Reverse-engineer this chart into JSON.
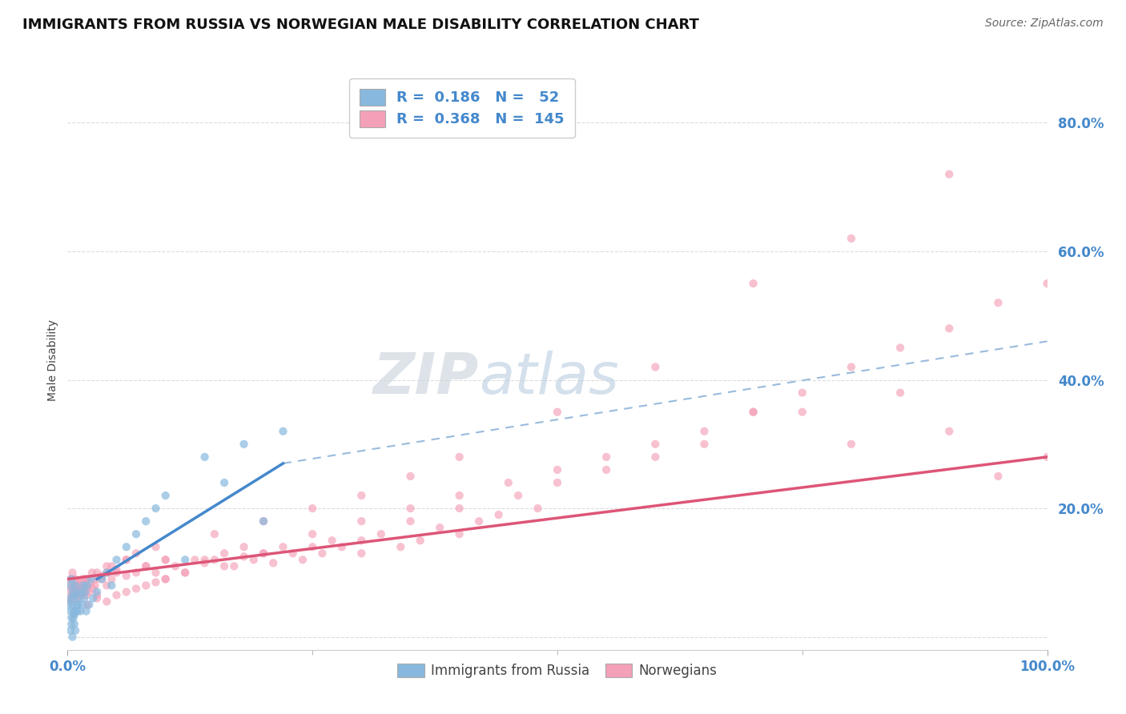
{
  "title": "IMMIGRANTS FROM RUSSIA VS NORWEGIAN MALE DISABILITY CORRELATION CHART",
  "source": "Source: ZipAtlas.com",
  "ylabel": "Male Disability",
  "watermark": "ZIPatlas",
  "legend_entries": [
    {
      "label": "Immigrants from Russia",
      "R": 0.186,
      "N": 52,
      "color": "#a8c8e8"
    },
    {
      "label": "Norwegians",
      "R": 0.368,
      "N": 145,
      "color": "#f4a0b8"
    }
  ],
  "blue_x": [
    0.001,
    0.002,
    0.003,
    0.003,
    0.004,
    0.004,
    0.005,
    0.005,
    0.006,
    0.006,
    0.007,
    0.007,
    0.008,
    0.008,
    0.009,
    0.01,
    0.01,
    0.011,
    0.012,
    0.013,
    0.014,
    0.015,
    0.016,
    0.017,
    0.018,
    0.019,
    0.02,
    0.022,
    0.024,
    0.026,
    0.03,
    0.035,
    0.04,
    0.045,
    0.05,
    0.06,
    0.07,
    0.08,
    0.09,
    0.1,
    0.12,
    0.14,
    0.16,
    0.18,
    0.2,
    0.22,
    0.003,
    0.004,
    0.005,
    0.006,
    0.007,
    0.008
  ],
  "blue_y": [
    0.05,
    0.06,
    0.04,
    0.08,
    0.03,
    0.09,
    0.05,
    0.07,
    0.04,
    0.06,
    0.035,
    0.065,
    0.04,
    0.08,
    0.05,
    0.04,
    0.07,
    0.05,
    0.06,
    0.04,
    0.07,
    0.05,
    0.08,
    0.06,
    0.07,
    0.04,
    0.08,
    0.05,
    0.09,
    0.06,
    0.07,
    0.09,
    0.1,
    0.08,
    0.12,
    0.14,
    0.16,
    0.18,
    0.2,
    0.22,
    0.12,
    0.28,
    0.24,
    0.3,
    0.18,
    0.32,
    0.01,
    0.02,
    0.0,
    0.03,
    0.02,
    0.01
  ],
  "pink_x": [
    0.001,
    0.002,
    0.003,
    0.004,
    0.005,
    0.005,
    0.006,
    0.007,
    0.008,
    0.008,
    0.009,
    0.01,
    0.01,
    0.011,
    0.012,
    0.013,
    0.014,
    0.015,
    0.016,
    0.017,
    0.018,
    0.019,
    0.02,
    0.02,
    0.022,
    0.024,
    0.026,
    0.028,
    0.03,
    0.03,
    0.035,
    0.04,
    0.04,
    0.045,
    0.05,
    0.06,
    0.06,
    0.07,
    0.08,
    0.09,
    0.1,
    0.1,
    0.11,
    0.12,
    0.13,
    0.14,
    0.15,
    0.16,
    0.17,
    0.18,
    0.19,
    0.2,
    0.21,
    0.22,
    0.23,
    0.24,
    0.25,
    0.26,
    0.27,
    0.28,
    0.3,
    0.3,
    0.32,
    0.34,
    0.35,
    0.36,
    0.38,
    0.4,
    0.4,
    0.42,
    0.44,
    0.46,
    0.48,
    0.5,
    0.55,
    0.6,
    0.65,
    0.7,
    0.75,
    0.8,
    0.85,
    0.9,
    0.95,
    1.0,
    0.02,
    0.03,
    0.04,
    0.05,
    0.06,
    0.07,
    0.08,
    0.09,
    0.1,
    0.12,
    0.14,
    0.16,
    0.18,
    0.2,
    0.25,
    0.3,
    0.35,
    0.4,
    0.45,
    0.5,
    0.55,
    0.6,
    0.65,
    0.7,
    0.75,
    0.8,
    0.85,
    0.9,
    0.95,
    1.0,
    0.003,
    0.005,
    0.007,
    0.009,
    0.011,
    0.013,
    0.015,
    0.018,
    0.02,
    0.025,
    0.03,
    0.035,
    0.04,
    0.045,
    0.05,
    0.06,
    0.07,
    0.08,
    0.09,
    0.1,
    0.15,
    0.2,
    0.25,
    0.3,
    0.35,
    0.4,
    0.5,
    0.6,
    0.7,
    0.8,
    0.9
  ],
  "pink_y": [
    0.08,
    0.07,
    0.09,
    0.06,
    0.075,
    0.1,
    0.065,
    0.08,
    0.07,
    0.09,
    0.075,
    0.06,
    0.085,
    0.07,
    0.065,
    0.08,
    0.075,
    0.065,
    0.09,
    0.07,
    0.08,
    0.065,
    0.075,
    0.09,
    0.07,
    0.085,
    0.075,
    0.08,
    0.065,
    0.1,
    0.09,
    0.08,
    0.11,
    0.09,
    0.1,
    0.095,
    0.12,
    0.1,
    0.11,
    0.1,
    0.12,
    0.09,
    0.11,
    0.1,
    0.12,
    0.115,
    0.12,
    0.13,
    0.11,
    0.125,
    0.12,
    0.13,
    0.115,
    0.14,
    0.13,
    0.12,
    0.14,
    0.13,
    0.15,
    0.14,
    0.15,
    0.13,
    0.16,
    0.14,
    0.18,
    0.15,
    0.17,
    0.16,
    0.2,
    0.18,
    0.19,
    0.22,
    0.2,
    0.24,
    0.26,
    0.28,
    0.3,
    0.35,
    0.35,
    0.3,
    0.38,
    0.32,
    0.25,
    0.28,
    0.05,
    0.06,
    0.055,
    0.065,
    0.07,
    0.075,
    0.08,
    0.085,
    0.09,
    0.1,
    0.12,
    0.11,
    0.14,
    0.13,
    0.16,
    0.18,
    0.2,
    0.22,
    0.24,
    0.26,
    0.28,
    0.3,
    0.32,
    0.35,
    0.38,
    0.42,
    0.45,
    0.48,
    0.52,
    0.55,
    0.055,
    0.065,
    0.07,
    0.075,
    0.08,
    0.085,
    0.075,
    0.09,
    0.08,
    0.1,
    0.09,
    0.095,
    0.1,
    0.11,
    0.105,
    0.12,
    0.13,
    0.11,
    0.14,
    0.12,
    0.16,
    0.18,
    0.2,
    0.22,
    0.25,
    0.28,
    0.35,
    0.42,
    0.55,
    0.62,
    0.72
  ],
  "blue_line": {
    "x": [
      0.03,
      0.22
    ],
    "y": [
      0.09,
      0.27
    ]
  },
  "blue_dash_line": {
    "x": [
      0.22,
      1.0
    ],
    "y": [
      0.27,
      0.46
    ]
  },
  "pink_line": {
    "x": [
      0.0,
      1.0
    ],
    "y": [
      0.09,
      0.28
    ]
  },
  "x_lim": [
    0.0,
    1.0
  ],
  "y_lim": [
    -0.02,
    0.88
  ],
  "y_ticks": [
    0.0,
    0.2,
    0.4,
    0.6,
    0.8
  ],
  "y_tick_labels": [
    "",
    "20.0%",
    "40.0%",
    "60.0%",
    "80.0%"
  ],
  "x_ticks_minor": [
    0.0,
    0.25,
    0.5,
    0.75,
    1.0
  ],
  "background_color": "#ffffff",
  "grid_color": "#dddddd",
  "title_fontsize": 13,
  "tick_label_color": "#4488cc",
  "scatter_size": 55,
  "blue_color": "#88b8dd",
  "pink_color": "#f4a0b8",
  "blue_line_color": "#4488cc",
  "pink_line_color": "#dd5577",
  "dash_line_color": "#99bbdd"
}
